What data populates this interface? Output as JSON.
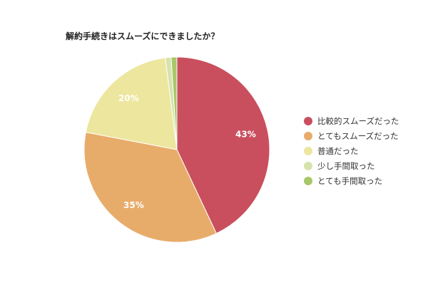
{
  "chart_data": {
    "type": "pie",
    "title": "解約手続きはスムーズにできましたか？",
    "slices": [
      {
        "label": "比較的スムーズだった",
        "value": 43,
        "display": "43%",
        "color": "#c94f5e"
      },
      {
        "label": "とてもスムーズだった",
        "value": 35,
        "display": "35%",
        "color": "#e8ac6a"
      },
      {
        "label": "普通だった",
        "value": 20,
        "display": "20%",
        "color": "#ede69e"
      },
      {
        "label": "少し手間取った",
        "value": 1,
        "display": "",
        "color": "#d6e3ad"
      },
      {
        "label": "とても手間取った",
        "value": 1,
        "display": "",
        "color": "#a8c768"
      }
    ],
    "legend_position": "right"
  }
}
